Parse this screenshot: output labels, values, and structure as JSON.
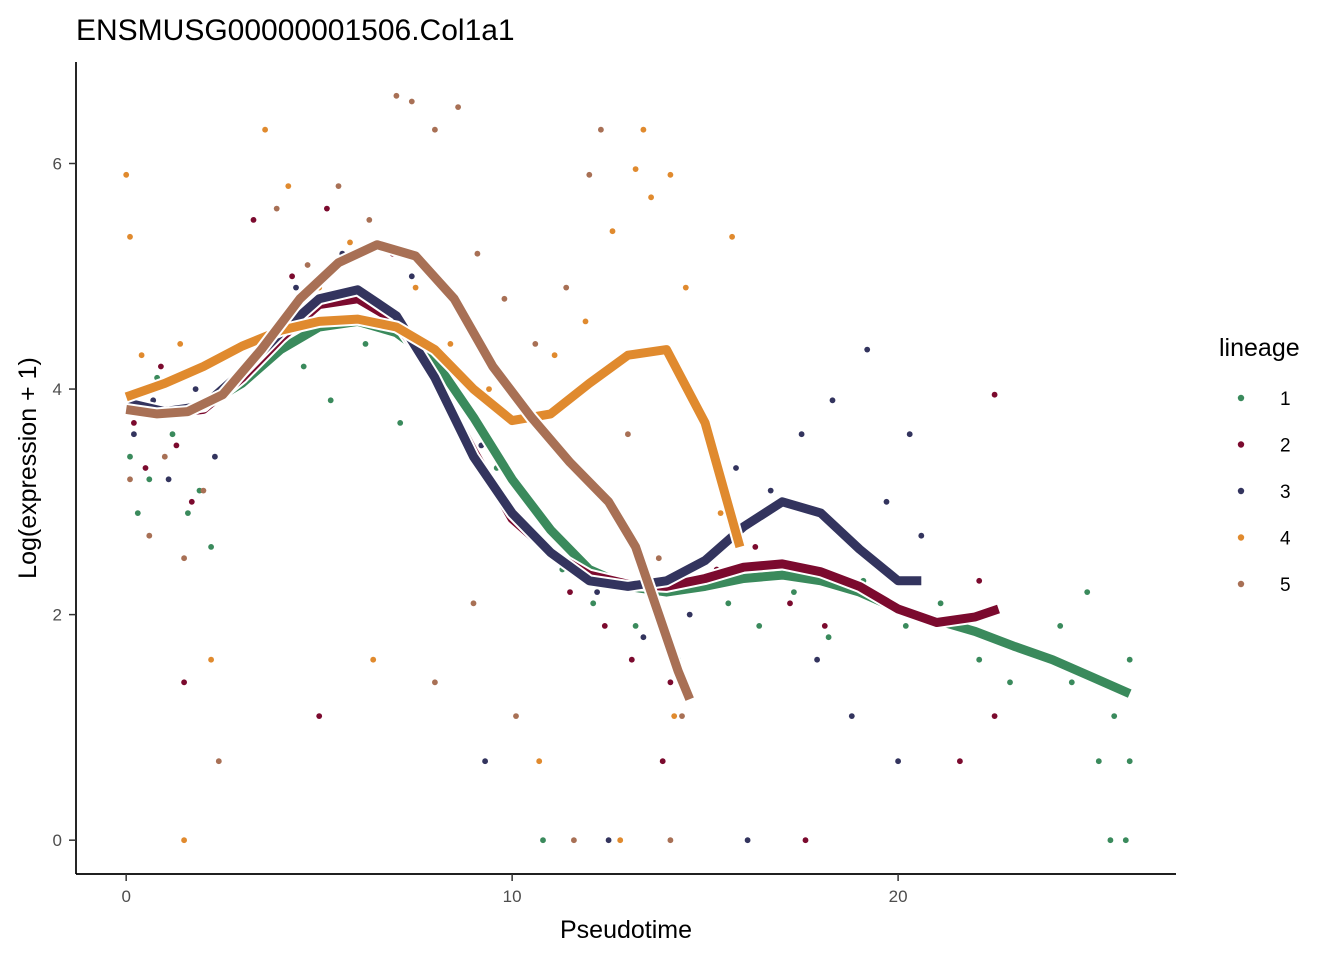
{
  "chart_data": {
    "type": "scatter",
    "title": "ENSMUSG00000001506.Col1a1",
    "xlabel": "Pseudotime",
    "ylabel": "Log(expression + 1)",
    "xlim": [
      -1.3,
      27.2
    ],
    "ylim": [
      -0.3,
      6.9
    ],
    "x_ticks": [
      0,
      10,
      20
    ],
    "y_ticks": [
      0,
      2,
      4,
      6
    ],
    "grid": false,
    "legend": {
      "title": "lineage",
      "position": "right"
    },
    "series": [
      {
        "name": "1",
        "color": "#3A8A5C",
        "curve": [
          [
            0,
            3.85
          ],
          [
            1,
            3.8
          ],
          [
            2,
            3.85
          ],
          [
            3,
            4.05
          ],
          [
            4,
            4.35
          ],
          [
            5,
            4.55
          ],
          [
            6,
            4.6
          ],
          [
            7,
            4.5
          ],
          [
            8,
            4.25
          ],
          [
            9,
            3.75
          ],
          [
            10,
            3.2
          ],
          [
            11,
            2.75
          ],
          [
            12,
            2.4
          ],
          [
            13,
            2.25
          ],
          [
            14,
            2.2
          ],
          [
            15,
            2.25
          ],
          [
            16,
            2.32
          ],
          [
            17,
            2.35
          ],
          [
            18,
            2.3
          ],
          [
            19,
            2.2
          ],
          [
            20,
            2.05
          ],
          [
            21,
            1.95
          ],
          [
            22,
            1.85
          ],
          [
            23,
            1.72
          ],
          [
            24,
            1.6
          ],
          [
            25,
            1.45
          ],
          [
            26,
            1.3
          ]
        ],
        "points": [
          [
            0.1,
            3.4
          ],
          [
            0.3,
            2.9
          ],
          [
            0.6,
            3.2
          ],
          [
            0.8,
            4.1
          ],
          [
            1.2,
            3.6
          ],
          [
            1.6,
            2.9
          ],
          [
            1.9,
            3.1
          ],
          [
            2.2,
            2.6
          ],
          [
            4.6,
            4.2
          ],
          [
            5.3,
            3.9
          ],
          [
            6.2,
            4.4
          ],
          [
            7.1,
            3.7
          ],
          [
            8.2,
            4.1
          ],
          [
            9.6,
            3.3
          ],
          [
            10.4,
            2.8
          ],
          [
            11.3,
            2.4
          ],
          [
            12.1,
            2.1
          ],
          [
            13.2,
            1.9
          ],
          [
            14.3,
            1.6
          ],
          [
            15.6,
            2.1
          ],
          [
            16.4,
            1.9
          ],
          [
            17.3,
            2.2
          ],
          [
            18.2,
            1.8
          ],
          [
            19.1,
            2.3
          ],
          [
            20.2,
            1.9
          ],
          [
            21.1,
            2.1
          ],
          [
            22.1,
            1.6
          ],
          [
            22.9,
            1.4
          ],
          [
            24.2,
            1.9
          ],
          [
            24.9,
            2.2
          ],
          [
            25.6,
            1.1
          ],
          [
            26.0,
            1.6
          ],
          [
            26.0,
            0.7
          ],
          [
            25.5,
            0.0
          ],
          [
            25.9,
            0.0
          ],
          [
            25.2,
            0.7
          ],
          [
            24.5,
            1.4
          ],
          [
            10.8,
            0.0
          ]
        ]
      },
      {
        "name": "2",
        "color": "#7B0A2E",
        "curve": [
          [
            0,
            3.9
          ],
          [
            1,
            3.78
          ],
          [
            2,
            3.82
          ],
          [
            3,
            4.1
          ],
          [
            4,
            4.45
          ],
          [
            5,
            4.75
          ],
          [
            6,
            4.8
          ],
          [
            7,
            4.6
          ],
          [
            8,
            4.1
          ],
          [
            9,
            3.45
          ],
          [
            10,
            2.85
          ],
          [
            11,
            2.55
          ],
          [
            12,
            2.35
          ],
          [
            13,
            2.27
          ],
          [
            14,
            2.25
          ],
          [
            15,
            2.32
          ],
          [
            16,
            2.42
          ],
          [
            17,
            2.45
          ],
          [
            18,
            2.38
          ],
          [
            19,
            2.25
          ],
          [
            20,
            2.05
          ],
          [
            21,
            1.93
          ],
          [
            22,
            1.98
          ],
          [
            22.6,
            2.05
          ]
        ],
        "points": [
          [
            0.2,
            3.7
          ],
          [
            0.5,
            3.3
          ],
          [
            0.9,
            4.2
          ],
          [
            1.3,
            3.5
          ],
          [
            1.7,
            3.0
          ],
          [
            2.1,
            3.9
          ],
          [
            3.3,
            5.5
          ],
          [
            4.3,
            5.0
          ],
          [
            5.2,
            5.6
          ],
          [
            6.0,
            4.6
          ],
          [
            6.9,
            5.2
          ],
          [
            7.8,
            4.3
          ],
          [
            8.8,
            3.6
          ],
          [
            9.7,
            3.1
          ],
          [
            10.6,
            2.7
          ],
          [
            11.5,
            2.2
          ],
          [
            12.4,
            1.9
          ],
          [
            13.1,
            1.6
          ],
          [
            14.1,
            1.4
          ],
          [
            15.3,
            2.4
          ],
          [
            16.3,
            2.6
          ],
          [
            17.2,
            2.1
          ],
          [
            18.1,
            1.9
          ],
          [
            19.0,
            2.6
          ],
          [
            20.1,
            2.3
          ],
          [
            21.2,
            1.9
          ],
          [
            22.1,
            2.3
          ],
          [
            22.5,
            3.95
          ],
          [
            22.5,
            1.1
          ],
          [
            21.6,
            0.7
          ],
          [
            17.6,
            0.0
          ],
          [
            13.9,
            0.7
          ],
          [
            1.5,
            1.4
          ],
          [
            5.0,
            1.1
          ]
        ]
      },
      {
        "name": "3",
        "color": "#33345E",
        "curve": [
          [
            0,
            3.88
          ],
          [
            1,
            3.8
          ],
          [
            2,
            3.85
          ],
          [
            3,
            4.15
          ],
          [
            4,
            4.5
          ],
          [
            5,
            4.8
          ],
          [
            6,
            4.88
          ],
          [
            7,
            4.65
          ],
          [
            8,
            4.1
          ],
          [
            9,
            3.4
          ],
          [
            10,
            2.9
          ],
          [
            11,
            2.55
          ],
          [
            12,
            2.3
          ],
          [
            13,
            2.25
          ],
          [
            14,
            2.3
          ],
          [
            15,
            2.48
          ],
          [
            16,
            2.78
          ],
          [
            17,
            3.0
          ],
          [
            18,
            2.9
          ],
          [
            19,
            2.58
          ],
          [
            20,
            2.3
          ],
          [
            20.6,
            2.3
          ]
        ],
        "points": [
          [
            0.2,
            3.6
          ],
          [
            0.7,
            3.9
          ],
          [
            1.1,
            3.2
          ],
          [
            1.8,
            4.0
          ],
          [
            2.3,
            3.4
          ],
          [
            4.4,
            4.9
          ],
          [
            5.6,
            5.2
          ],
          [
            6.5,
            4.7
          ],
          [
            7.4,
            5.0
          ],
          [
            8.3,
            4.2
          ],
          [
            9.2,
            3.5
          ],
          [
            10.1,
            2.9
          ],
          [
            11.2,
            2.5
          ],
          [
            12.2,
            2.2
          ],
          [
            13.4,
            1.8
          ],
          [
            14.6,
            2.0
          ],
          [
            15.8,
            3.3
          ],
          [
            16.7,
            3.1
          ],
          [
            17.5,
            3.6
          ],
          [
            18.3,
            3.9
          ],
          [
            19.2,
            4.35
          ],
          [
            19.7,
            3.0
          ],
          [
            20.3,
            3.6
          ],
          [
            20.6,
            2.7
          ],
          [
            17.9,
            1.6
          ],
          [
            18.8,
            1.1
          ],
          [
            20.0,
            0.7
          ],
          [
            16.1,
            0.0
          ],
          [
            12.5,
            0.0
          ],
          [
            9.3,
            0.7
          ]
        ]
      },
      {
        "name": "4",
        "color": "#E08A2E",
        "curve": [
          [
            0,
            3.93
          ],
          [
            1,
            4.05
          ],
          [
            2,
            4.2
          ],
          [
            3,
            4.38
          ],
          [
            4,
            4.52
          ],
          [
            5,
            4.6
          ],
          [
            6,
            4.62
          ],
          [
            7,
            4.55
          ],
          [
            8,
            4.35
          ],
          [
            9,
            4.0
          ],
          [
            10,
            3.72
          ],
          [
            11,
            3.78
          ],
          [
            12,
            4.05
          ],
          [
            13,
            4.3
          ],
          [
            14,
            4.35
          ],
          [
            15,
            3.7
          ],
          [
            15.9,
            2.6
          ]
        ],
        "points": [
          [
            0.0,
            5.9
          ],
          [
            0.1,
            5.35
          ],
          [
            0.4,
            4.3
          ],
          [
            0.8,
            3.8
          ],
          [
            1.4,
            4.4
          ],
          [
            2.2,
            1.6
          ],
          [
            1.5,
            0.0
          ],
          [
            3.6,
            6.3
          ],
          [
            4.2,
            5.8
          ],
          [
            5.0,
            4.9
          ],
          [
            5.8,
            5.3
          ],
          [
            6.7,
            4.6
          ],
          [
            7.5,
            4.9
          ],
          [
            8.4,
            4.4
          ],
          [
            9.4,
            4.0
          ],
          [
            10.3,
            3.8
          ],
          [
            11.1,
            4.3
          ],
          [
            11.9,
            4.6
          ],
          [
            12.6,
            5.4
          ],
          [
            13.2,
            5.95
          ],
          [
            13.4,
            6.3
          ],
          [
            13.6,
            5.7
          ],
          [
            14.1,
            5.9
          ],
          [
            14.5,
            4.9
          ],
          [
            15.0,
            3.6
          ],
          [
            15.4,
            2.9
          ],
          [
            15.7,
            5.35
          ],
          [
            15.2,
            2.3
          ],
          [
            14.2,
            1.1
          ],
          [
            12.8,
            0.0
          ],
          [
            10.7,
            0.7
          ],
          [
            6.4,
            1.6
          ]
        ]
      },
      {
        "name": "5",
        "color": "#A87055",
        "curve": [
          [
            0,
            3.82
          ],
          [
            0.8,
            3.78
          ],
          [
            1.6,
            3.8
          ],
          [
            2.5,
            3.95
          ],
          [
            3.5,
            4.35
          ],
          [
            4.5,
            4.8
          ],
          [
            5.5,
            5.12
          ],
          [
            6.5,
            5.28
          ],
          [
            7.5,
            5.18
          ],
          [
            8.5,
            4.8
          ],
          [
            9.5,
            4.2
          ],
          [
            10.5,
            3.75
          ],
          [
            11.5,
            3.35
          ],
          [
            12.5,
            3.0
          ],
          [
            13.2,
            2.6
          ],
          [
            13.8,
            2.0
          ],
          [
            14.3,
            1.5
          ],
          [
            14.6,
            1.25
          ]
        ],
        "points": [
          [
            0.1,
            3.2
          ],
          [
            0.6,
            2.7
          ],
          [
            1.0,
            3.4
          ],
          [
            1.5,
            2.5
          ],
          [
            2.0,
            3.1
          ],
          [
            2.4,
            0.7
          ],
          [
            3.9,
            5.6
          ],
          [
            4.7,
            5.1
          ],
          [
            5.5,
            5.8
          ],
          [
            6.3,
            5.5
          ],
          [
            7.0,
            6.6
          ],
          [
            7.4,
            6.55
          ],
          [
            8.0,
            6.3
          ],
          [
            8.6,
            6.5
          ],
          [
            9.1,
            5.2
          ],
          [
            9.8,
            4.8
          ],
          [
            10.6,
            4.4
          ],
          [
            11.4,
            4.9
          ],
          [
            12.3,
            6.3
          ],
          [
            12.0,
            5.9
          ],
          [
            13.0,
            3.6
          ],
          [
            13.8,
            2.5
          ],
          [
            14.4,
            1.1
          ],
          [
            11.6,
            0.0
          ],
          [
            14.1,
            0.0
          ],
          [
            10.1,
            1.1
          ],
          [
            8.0,
            1.4
          ],
          [
            9.0,
            2.1
          ]
        ]
      }
    ]
  }
}
